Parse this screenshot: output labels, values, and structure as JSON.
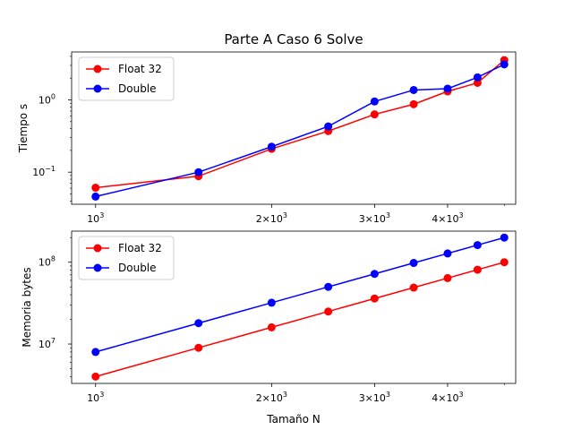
{
  "title": "Parte A Caso 6 Solve",
  "xlabel": "Tamaño N",
  "colors": {
    "float": "#ff0000",
    "double": "#0000ff"
  },
  "chart_data": [
    {
      "type": "line",
      "title": "Parte A Caso 6 Solve",
      "xlabel": "",
      "ylabel": "Tiempo s",
      "x_scale": "log",
      "y_scale": "log",
      "xlim": [
        910,
        5230
      ],
      "ylim": [
        0.036,
        4.6
      ],
      "x_ticks": [
        {
          "value": 1000,
          "base": "10",
          "exp": "3",
          "mult": ""
        },
        {
          "value": 2000,
          "base": "10",
          "exp": "3",
          "mult": "2×"
        },
        {
          "value": 3000,
          "base": "10",
          "exp": "3",
          "mult": "3×"
        },
        {
          "value": 4000,
          "base": "10",
          "exp": "3",
          "mult": "4×"
        }
      ],
      "y_ticks": [
        {
          "value": 0.1,
          "base": "10",
          "exp": "−1"
        },
        {
          "value": 1,
          "base": "10",
          "exp": "0"
        }
      ],
      "legend": "top-left",
      "grid": false,
      "x": [
        1000,
        1500,
        2000,
        2500,
        3000,
        3500,
        4000,
        4500,
        5000
      ],
      "series": [
        {
          "name": "Float 32",
          "color": "#ff0000",
          "values": [
            0.061,
            0.088,
            0.21,
            0.37,
            0.63,
            0.87,
            1.31,
            1.72,
            3.55
          ]
        },
        {
          "name": "Double",
          "color": "#0000ff",
          "values": [
            0.046,
            0.1,
            0.225,
            0.43,
            0.95,
            1.37,
            1.43,
            2.05,
            3.1
          ]
        }
      ]
    },
    {
      "type": "line",
      "title": "",
      "xlabel": "Tamaño N",
      "ylabel": "Memoria bytes",
      "x_scale": "log",
      "y_scale": "log",
      "xlim": [
        910,
        5230
      ],
      "ylim": [
        3300000,
        240000000
      ],
      "x_ticks": [
        {
          "value": 1000,
          "base": "10",
          "exp": "3",
          "mult": ""
        },
        {
          "value": 2000,
          "base": "10",
          "exp": "3",
          "mult": "2×"
        },
        {
          "value": 3000,
          "base": "10",
          "exp": "3",
          "mult": "3×"
        },
        {
          "value": 4000,
          "base": "10",
          "exp": "3",
          "mult": "4×"
        }
      ],
      "y_ticks": [
        {
          "value": 10000000,
          "base": "10",
          "exp": "7"
        },
        {
          "value": 100000000,
          "base": "10",
          "exp": "8"
        }
      ],
      "legend": "top-left",
      "grid": false,
      "x": [
        1000,
        1500,
        2000,
        2500,
        3000,
        3500,
        4000,
        4500,
        5000
      ],
      "series": [
        {
          "name": "Float 32",
          "color": "#ff0000",
          "values": [
            4000000,
            9000000,
            16000000,
            25000000,
            36000000,
            49000000,
            64000000,
            81000000,
            100000000
          ]
        },
        {
          "name": "Double",
          "color": "#0000ff",
          "values": [
            8000000,
            18000000,
            32000000,
            50000000,
            72000000,
            98000000,
            128000000,
            162000000,
            200000000
          ]
        }
      ]
    }
  ]
}
